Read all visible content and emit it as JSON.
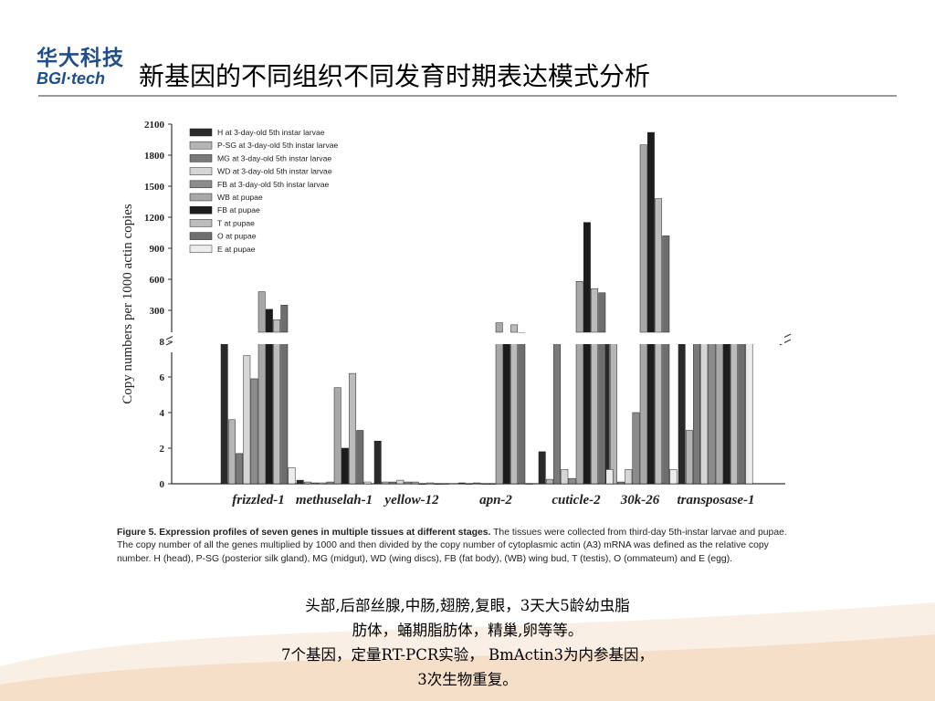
{
  "header": {
    "logo_cn": "华大科技",
    "logo_en_bgi": "BGI",
    "logo_en_tech": "·tech",
    "title": "新基因的不同组织不同发育时期表达模式分析"
  },
  "colors": {
    "H": "#2a2a2a",
    "P-SG": "#b5b5b5",
    "MG": "#7a7a7a",
    "WD": "#d6d6d6",
    "FB3": "#8c8c8c",
    "WB": "#a8a8a8",
    "FBp": "#1c1c1c",
    "T": "#bcbcbc",
    "O": "#6e6e6e",
    "E": "#ececec",
    "title_rule": "#9a9a9a",
    "logo": "#1f4e8c"
  },
  "chart_data": {
    "type": "bar",
    "ylabel": "Copy numbers per 1000 actin copies",
    "y_upper_ticks": [
      "2100",
      "1800",
      "1500",
      "1200",
      "900",
      "600",
      "300"
    ],
    "y_upper_range": [
      0,
      2100
    ],
    "y_lower_ticks": [
      "0",
      "2",
      "4",
      "6",
      "8"
    ],
    "y_lower_range": [
      0,
      8
    ],
    "broken_axis": true,
    "categories": [
      "frizzled-1",
      "methuselah-1",
      "yellow-12",
      "apn-2",
      "cuticle-2",
      "30k-26",
      "transposase-1"
    ],
    "legend_position": "top-left",
    "series": [
      {
        "name": "H at 3-day-old 5th instar larvae",
        "key": "H",
        "values": [
          7.9,
          0.2,
          2.4,
          0.05,
          1.8,
          8.0,
          8.0
        ]
      },
      {
        "name": "P-SG at 3-day-old 5th instar larvae",
        "key": "P-SG",
        "values": [
          3.6,
          0.1,
          0.1,
          0.0,
          0.25,
          8.0,
          3.0
        ]
      },
      {
        "name": "MG at 3-day-old 5th instar larvae",
        "key": "MG",
        "values": [
          1.7,
          0.05,
          0.1,
          0.05,
          8.0,
          0.1,
          8.0
        ]
      },
      {
        "name": "WD at 3-day-old 5th instar larvae",
        "key": "WD",
        "values": [
          7.2,
          0.05,
          0.2,
          0.0,
          0.8,
          0.8,
          8.0
        ]
      },
      {
        "name": "FB at 3-day-old 5th instar larvae",
        "key": "FB3",
        "values": [
          5.9,
          0.1,
          0.1,
          0.0,
          0.3,
          4.0,
          8.0
        ]
      },
      {
        "name": "WB at pupae",
        "key": "WB",
        "values": [
          480,
          5.4,
          0.1,
          180,
          580,
          1900,
          50
        ]
      },
      {
        "name": "FB at pupae",
        "key": "FBp",
        "values": [
          310,
          2.0,
          0.0,
          50,
          1150,
          2020,
          8.0
        ]
      },
      {
        "name": "T at pupae",
        "key": "T",
        "values": [
          210,
          6.2,
          0.05,
          160,
          510,
          1380,
          8.0
        ]
      },
      {
        "name": "O at pupae",
        "key": "O",
        "values": [
          350,
          3.0,
          0.0,
          80,
          470,
          1020,
          8.0
        ]
      },
      {
        "name": "E at pupae",
        "key": "E",
        "values": [
          0.9,
          0.1,
          0.0,
          0.0,
          0.8,
          0.8,
          8.0
        ]
      }
    ]
  },
  "caption": {
    "label": "Figure 5. Expression profiles of seven genes in multiple tissues at different stages.",
    "text": " The tissues were collected from third-day 5th-instar larvae and pupae. The copy number of all the genes multiplied by 1000 and then divided by the copy number of cytoplasmic actin (A3) mRNA was defined as the relative copy number. H (head), P-SG (posterior silk gland), MG (midgut), WD (wing discs), FB (fat body), (WB) wing bud, T (testis), O (ommateum) and E (egg)."
  },
  "notes": {
    "line1": "头部,后部丝腺,中肠,翅膀,复眼，3天大5龄幼虫脂",
    "line2": "肪体，蛹期脂肪体，精巢,卵等等。",
    "line3": "7个基因，定量RT-PCR实验， BmActin3为内参基因，",
    "line4": "3次生物重复。"
  }
}
